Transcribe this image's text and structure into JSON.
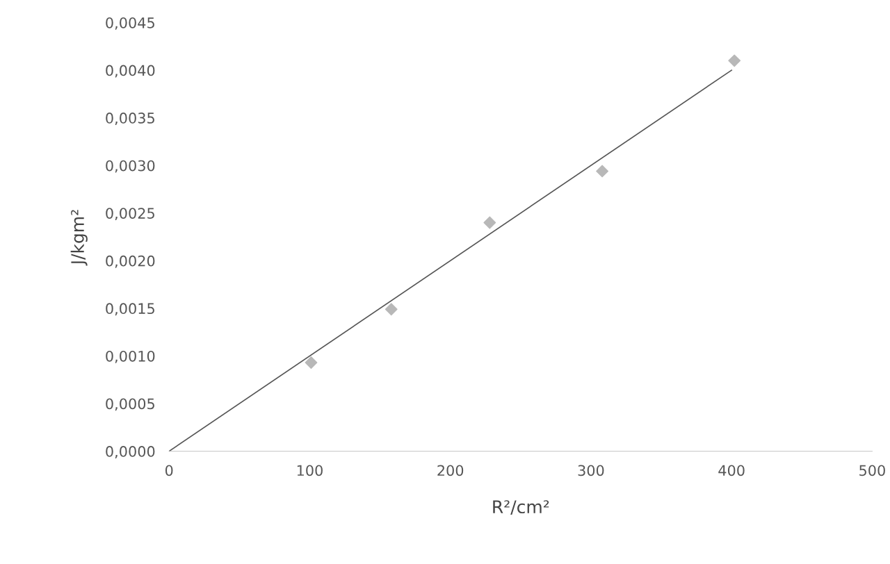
{
  "chart_data": {
    "type": "scatter",
    "xlabel": "R²/cm²",
    "ylabel": "J/kgm²",
    "xlim": [
      0,
      500
    ],
    "ylim": [
      0,
      0.0045
    ],
    "xticks": [
      0,
      100,
      200,
      300,
      400,
      500
    ],
    "yticks": [
      {
        "value": 0,
        "label": "0,0000"
      },
      {
        "value": 0.0005,
        "label": "0,0005"
      },
      {
        "value": 0.001,
        "label": "0,0010"
      },
      {
        "value": 0.0015,
        "label": "0,0015"
      },
      {
        "value": 0.002,
        "label": "0,0020"
      },
      {
        "value": 0.0025,
        "label": "0,0025"
      },
      {
        "value": 0.003,
        "label": "0,0030"
      },
      {
        "value": 0.0035,
        "label": "0,0035"
      },
      {
        "value": 0.004,
        "label": "0,0040"
      },
      {
        "value": 0.0045,
        "label": "0,0045"
      }
    ],
    "grid": false,
    "legend": false,
    "series": [
      {
        "color": "#b8b8b8",
        "marker": "diamond",
        "x": [
          101,
          158,
          228,
          308,
          402
        ],
        "values": [
          0.00093,
          0.00149,
          0.0024,
          0.00294,
          0.0041
        ]
      },
      {
        "type": "line",
        "color": "#555555",
        "marker": "none",
        "line_style": "solid",
        "x": [
          0,
          400
        ],
        "values": [
          0,
          0.004
        ]
      }
    ]
  }
}
